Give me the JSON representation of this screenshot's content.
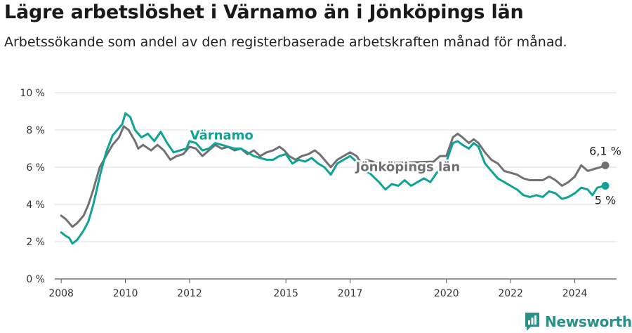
{
  "title": "Lägre arbetslöshet i Värnamo än i Jönköpings län",
  "subtitle": "Arbetssökande som andel av den registerbaserade arbetskraften månad för månad.",
  "brand": "Newsworthy",
  "colors": {
    "varnamo": "#0fa396",
    "lan": "#717073",
    "grid": "#dddddd",
    "brand": "#2a8f87"
  },
  "chart_data": {
    "type": "line",
    "x_unit": "year",
    "xlim": [
      2007.8,
      2025.3
    ],
    "ylim": [
      0,
      10
    ],
    "yticks": [
      0,
      2,
      4,
      6,
      8,
      10
    ],
    "ytick_labels": [
      "0 %",
      "2 %",
      "4 %",
      "6 %",
      "8 %",
      "10 %"
    ],
    "xticks": [
      2008,
      2010,
      2012,
      2015,
      2017,
      2020,
      2022,
      2024
    ],
    "xtick_labels": [
      "2008",
      "2010",
      "2012",
      "2015",
      "2017",
      "2020",
      "2022",
      "2024"
    ],
    "series": [
      {
        "name": "Jönköpings län",
        "end_label": "6,1 %",
        "points": [
          [
            2008.0,
            3.4
          ],
          [
            2008.15,
            3.2
          ],
          [
            2008.35,
            2.8
          ],
          [
            2008.5,
            3.0
          ],
          [
            2008.7,
            3.4
          ],
          [
            2008.85,
            4.0
          ],
          [
            2009.0,
            4.8
          ],
          [
            2009.2,
            6.0
          ],
          [
            2009.4,
            6.6
          ],
          [
            2009.6,
            7.2
          ],
          [
            2009.8,
            7.6
          ],
          [
            2009.95,
            8.2
          ],
          [
            2010.1,
            8.0
          ],
          [
            2010.3,
            7.4
          ],
          [
            2010.4,
            7.0
          ],
          [
            2010.55,
            7.2
          ],
          [
            2010.8,
            6.9
          ],
          [
            2011.0,
            7.2
          ],
          [
            2011.2,
            6.9
          ],
          [
            2011.4,
            6.4
          ],
          [
            2011.6,
            6.6
          ],
          [
            2011.8,
            6.7
          ],
          [
            2012.0,
            7.1
          ],
          [
            2012.2,
            7.0
          ],
          [
            2012.4,
            6.6
          ],
          [
            2012.6,
            6.9
          ],
          [
            2012.8,
            7.2
          ],
          [
            2013.0,
            7.0
          ],
          [
            2013.2,
            7.1
          ],
          [
            2013.4,
            6.9
          ],
          [
            2013.6,
            7.0
          ],
          [
            2013.8,
            6.7
          ],
          [
            2014.0,
            6.9
          ],
          [
            2014.2,
            6.6
          ],
          [
            2014.4,
            6.8
          ],
          [
            2014.6,
            6.9
          ],
          [
            2014.8,
            7.1
          ],
          [
            2014.95,
            6.9
          ],
          [
            2015.1,
            6.6
          ],
          [
            2015.3,
            6.4
          ],
          [
            2015.5,
            6.6
          ],
          [
            2015.7,
            6.7
          ],
          [
            2015.9,
            6.9
          ],
          [
            2016.05,
            6.7
          ],
          [
            2016.2,
            6.4
          ],
          [
            2016.4,
            6.0
          ],
          [
            2016.6,
            6.4
          ],
          [
            2016.8,
            6.6
          ],
          [
            2017.0,
            6.8
          ],
          [
            2017.2,
            6.6
          ],
          [
            2017.35,
            6.2
          ],
          [
            2017.5,
            6.4
          ],
          [
            2017.7,
            6.3
          ],
          [
            2017.8,
            6.2
          ],
          [
            2019.6,
            6.3
          ],
          [
            2019.8,
            6.6
          ],
          [
            2020.0,
            6.6
          ],
          [
            2020.2,
            7.6
          ],
          [
            2020.35,
            7.8
          ],
          [
            2020.5,
            7.6
          ],
          [
            2020.7,
            7.3
          ],
          [
            2020.85,
            7.5
          ],
          [
            2021.0,
            7.3
          ],
          [
            2021.2,
            6.8
          ],
          [
            2021.4,
            6.4
          ],
          [
            2021.6,
            6.2
          ],
          [
            2021.8,
            5.8
          ],
          [
            2022.0,
            5.7
          ],
          [
            2022.2,
            5.6
          ],
          [
            2022.4,
            5.4
          ],
          [
            2022.6,
            5.3
          ],
          [
            2022.8,
            5.3
          ],
          [
            2023.0,
            5.3
          ],
          [
            2023.2,
            5.5
          ],
          [
            2023.4,
            5.3
          ],
          [
            2023.6,
            5.0
          ],
          [
            2023.8,
            5.2
          ],
          [
            2024.0,
            5.5
          ],
          [
            2024.2,
            6.1
          ],
          [
            2024.4,
            5.8
          ],
          [
            2024.6,
            5.9
          ],
          [
            2024.8,
            6.0
          ],
          [
            2024.95,
            6.1
          ]
        ]
      },
      {
        "name": "Värnamo",
        "end_label": "5 %",
        "points": [
          [
            2008.0,
            2.5
          ],
          [
            2008.15,
            2.3
          ],
          [
            2008.25,
            2.2
          ],
          [
            2008.35,
            1.9
          ],
          [
            2008.5,
            2.1
          ],
          [
            2008.7,
            2.6
          ],
          [
            2008.85,
            3.1
          ],
          [
            2009.0,
            4.0
          ],
          [
            2009.2,
            5.5
          ],
          [
            2009.4,
            6.8
          ],
          [
            2009.6,
            7.7
          ],
          [
            2009.75,
            8.0
          ],
          [
            2009.9,
            8.3
          ],
          [
            2010.0,
            8.9
          ],
          [
            2010.15,
            8.7
          ],
          [
            2010.3,
            8.0
          ],
          [
            2010.5,
            7.6
          ],
          [
            2010.7,
            7.8
          ],
          [
            2010.9,
            7.4
          ],
          [
            2011.1,
            7.9
          ],
          [
            2011.3,
            7.3
          ],
          [
            2011.5,
            6.8
          ],
          [
            2011.7,
            6.9
          ],
          [
            2011.9,
            7.0
          ],
          [
            2012.0,
            7.4
          ],
          [
            2012.2,
            7.3
          ],
          [
            2012.4,
            6.9
          ],
          [
            2012.6,
            7.0
          ],
          [
            2012.8,
            7.3
          ],
          [
            2013.0,
            7.2
          ],
          [
            2013.2,
            7.1
          ],
          [
            2013.4,
            7.0
          ],
          [
            2013.6,
            7.0
          ],
          [
            2013.8,
            6.8
          ],
          [
            2014.0,
            6.6
          ],
          [
            2014.2,
            6.5
          ],
          [
            2014.4,
            6.4
          ],
          [
            2014.6,
            6.4
          ],
          [
            2014.8,
            6.6
          ],
          [
            2015.0,
            6.7
          ],
          [
            2015.2,
            6.2
          ],
          [
            2015.4,
            6.4
          ],
          [
            2015.6,
            6.3
          ],
          [
            2015.8,
            6.5
          ],
          [
            2016.0,
            6.2
          ],
          [
            2016.2,
            6.0
          ],
          [
            2016.4,
            5.6
          ],
          [
            2016.6,
            6.2
          ],
          [
            2016.8,
            6.4
          ],
          [
            2017.0,
            6.6
          ],
          [
            2017.2,
            6.3
          ],
          [
            2017.4,
            5.8
          ],
          [
            2017.6,
            5.7
          ],
          [
            2017.9,
            5.2
          ],
          [
            2018.1,
            4.8
          ],
          [
            2018.3,
            5.1
          ],
          [
            2018.5,
            5.0
          ],
          [
            2018.7,
            5.3
          ],
          [
            2018.9,
            5.0
          ],
          [
            2019.1,
            5.2
          ],
          [
            2019.3,
            5.4
          ],
          [
            2019.5,
            5.2
          ],
          [
            2019.7,
            5.7
          ],
          [
            2019.9,
            6.1
          ],
          [
            2020.0,
            6.3
          ],
          [
            2020.2,
            7.3
          ],
          [
            2020.35,
            7.4
          ],
          [
            2020.5,
            7.2
          ],
          [
            2020.7,
            7.0
          ],
          [
            2020.85,
            7.3
          ],
          [
            2021.0,
            7.1
          ],
          [
            2021.2,
            6.2
          ],
          [
            2021.4,
            5.8
          ],
          [
            2021.6,
            5.4
          ],
          [
            2021.8,
            5.2
          ],
          [
            2022.0,
            5.0
          ],
          [
            2022.2,
            4.8
          ],
          [
            2022.4,
            4.5
          ],
          [
            2022.6,
            4.4
          ],
          [
            2022.8,
            4.5
          ],
          [
            2023.0,
            4.4
          ],
          [
            2023.2,
            4.7
          ],
          [
            2023.4,
            4.6
          ],
          [
            2023.6,
            4.3
          ],
          [
            2023.8,
            4.4
          ],
          [
            2024.0,
            4.6
          ],
          [
            2024.2,
            4.9
          ],
          [
            2024.4,
            4.8
          ],
          [
            2024.55,
            4.5
          ],
          [
            2024.7,
            4.9
          ],
          [
            2024.95,
            5.0
          ]
        ]
      }
    ],
    "annotations": [
      {
        "text": "Värnamo",
        "x": 2013.0,
        "y": 7.5,
        "series": "Värnamo"
      },
      {
        "text": "Jönköpings län",
        "x": 2018.8,
        "y": 5.8,
        "series": "Jönköpings län"
      }
    ]
  }
}
